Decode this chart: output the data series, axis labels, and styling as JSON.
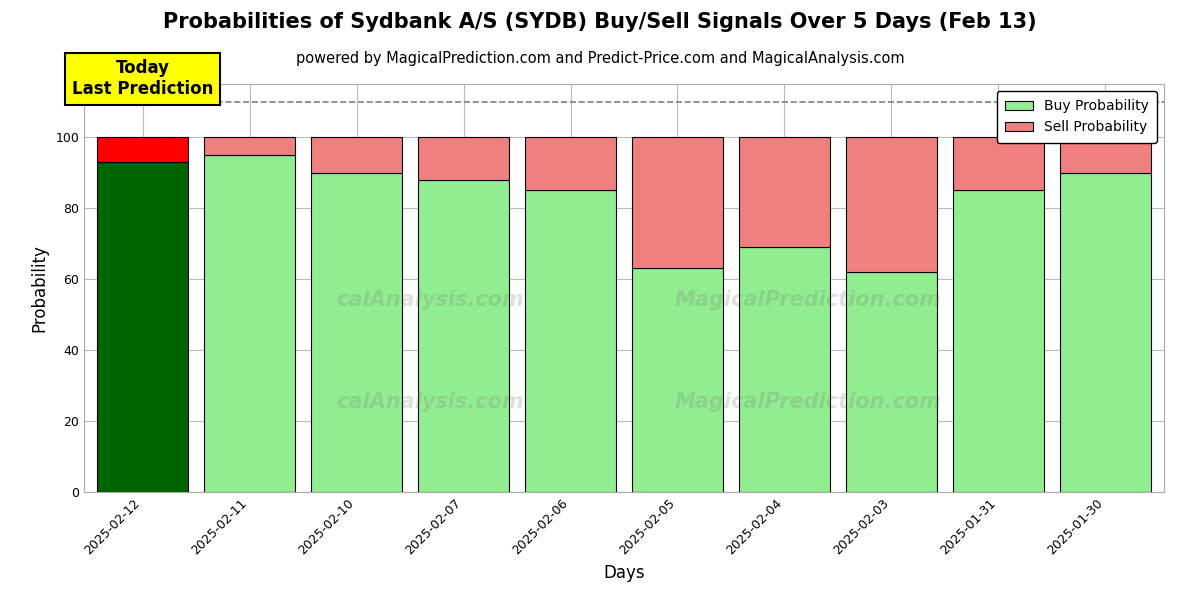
{
  "title": "Probabilities of Sydbank A/S (SYDB) Buy/Sell Signals Over 5 Days (Feb 13)",
  "subtitle": "powered by MagicalPrediction.com and Predict-Price.com and MagicalAnalysis.com",
  "xlabel": "Days",
  "ylabel": "Probability",
  "dates": [
    "2025-02-12",
    "2025-02-11",
    "2025-02-10",
    "2025-02-07",
    "2025-02-06",
    "2025-02-05",
    "2025-02-04",
    "2025-02-03",
    "2025-01-31",
    "2025-01-30"
  ],
  "buy_probs": [
    93,
    95,
    90,
    88,
    85,
    63,
    69,
    62,
    85,
    90
  ],
  "sell_probs": [
    7,
    5,
    10,
    12,
    15,
    37,
    31,
    38,
    15,
    10
  ],
  "today_buy_color": "#006400",
  "today_sell_color": "#FF0000",
  "buy_color_light": "#90EE90",
  "sell_color_light": "#F08080",
  "today_label": "Today\nLast Prediction",
  "legend_buy": "Buy Probability",
  "legend_sell": "Sell Probability",
  "dashed_line_y": 110,
  "ylim": [
    0,
    115
  ],
  "yticks": [
    0,
    20,
    40,
    60,
    80,
    100
  ],
  "bar_width": 0.85,
  "figsize": [
    12,
    6
  ],
  "dpi": 100,
  "title_fontsize": 15,
  "subtitle_fontsize": 10.5,
  "axis_label_fontsize": 12,
  "tick_fontsize": 9,
  "legend_fontsize": 10,
  "annotation_fontsize": 12,
  "background_color": "#ffffff",
  "grid_color": "#bbbbbb",
  "watermark1": "MagicalAnalysis.com",
  "watermark2": "MagicalPrediction.com",
  "watermark3": "calAnalysis.com",
  "watermark4": "MagicalPrediction.com"
}
